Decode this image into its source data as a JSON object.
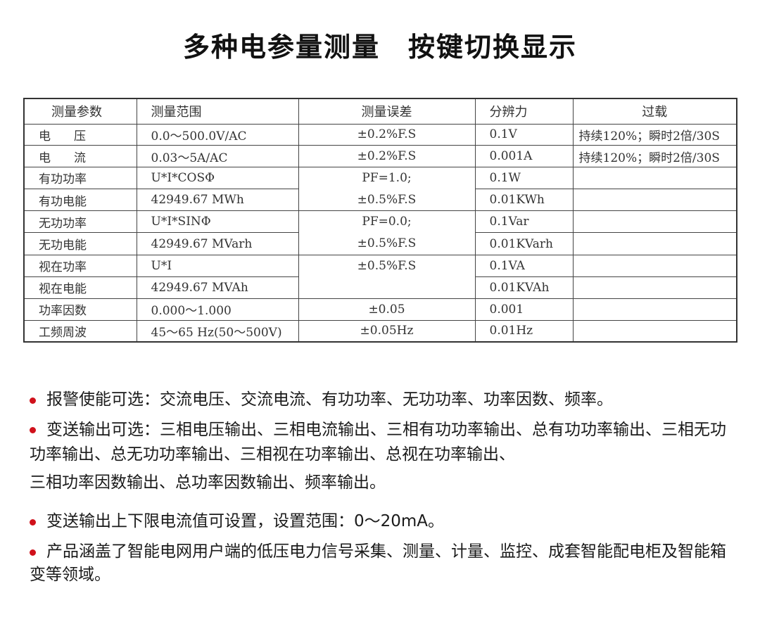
{
  "title": [
    "多种电参量测量",
    "按键切换显示"
  ],
  "table": {
    "headers": [
      "测量参数",
      "测量范围",
      "测量误差",
      "分辨力",
      "过载"
    ],
    "rows": [
      {
        "param": "电压",
        "range": "0.0～500.0V/AC",
        "error": "±0.2%F.S",
        "res": "0.1V",
        "overload": "持续120%；瞬时2倍/30S"
      },
      {
        "param": "电流",
        "range": "0.03～5A/AC",
        "error": "±0.2%F.S",
        "res": "0.001A",
        "overload": "持续120%；瞬时2倍/30S"
      },
      {
        "param": "有功功率",
        "range": "U*I*COSΦ",
        "error": "PF=1.0;",
        "res": "0.1W",
        "overload": ""
      },
      {
        "param": "有功电能",
        "range": "42949.67 MWh",
        "error": "±0.5%F.S",
        "res": "0.01KWh",
        "overload": ""
      },
      {
        "param": "无功功率",
        "range": "U*I*SINΦ",
        "error": "PF=0.0;",
        "res": "0.1Var",
        "overload": ""
      },
      {
        "param": "无功电能",
        "range": "42949.67 MVarh",
        "error": "±0.5%F.S",
        "res": "0.01KVarh",
        "overload": ""
      },
      {
        "param": "视在功率",
        "range": "U*I",
        "error": "±0.5%F.S",
        "res": "0.1VA",
        "overload": ""
      },
      {
        "param": "视在电能",
        "range": "42949.67 MVAh",
        "error": "",
        "res": "0.01KVAh",
        "overload": ""
      },
      {
        "param": "功率因数",
        "range": "0.000～1.000",
        "error": "±0.05",
        "res": "0.001",
        "overload": ""
      },
      {
        "param": "工频周波",
        "range": "45～65 Hz(50～500V)",
        "error": "±0.05Hz",
        "res": "0.01Hz",
        "overload": ""
      }
    ]
  },
  "bullets": [
    "报警使能可选：交流电压、交流电流、有功功率、无功功率、功率因数、频率。",
    "变送输出可选：三相电压输出、三相电流输出、三相有功功率输出、总有功功率输出、三相无功功率输出、总无功功率输出、三相视在功率输出、总视在功率输出、",
    "三相功率因数输出、总功率因数输出、频率输出。",
    "变送输出上下限电流值可设置，设置范围：0～20mA。",
    "产品涵盖了智能电网用户端的低压电力信号采集、测量、计量、监控、成套智能配电柜及智能箱变等领域。"
  ],
  "colors": {
    "bullet": "#d0111b"
  }
}
